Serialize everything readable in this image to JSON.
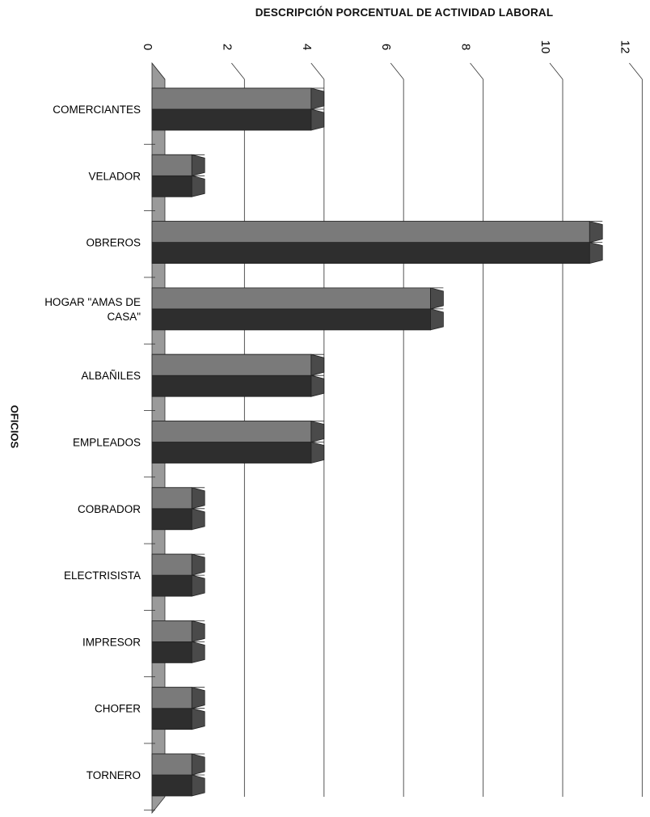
{
  "chart_data": {
    "type": "bar",
    "title": "DESCRIPCIÓN PORCENTUAL DE ACTIVIDAD LABORAL",
    "xlabel": "",
    "ylabel": "OFICIOS",
    "orientation": "horizontal",
    "categories": [
      "COMERCIANTES",
      "VELADOR",
      "OBREROS",
      "HOGAR \"AMAS DE CASA\"",
      "ALBAÑILES",
      "EMPLEADOS",
      "COBRADOR",
      "ELECTRISISTA",
      "IMPRESOR",
      "CHOFER",
      "TORNERO"
    ],
    "category_lines": [
      [
        "COMERCIANTES"
      ],
      [
        "VELADOR"
      ],
      [
        "OBREROS"
      ],
      [
        "HOGAR \"AMAS DE",
        "CASA\""
      ],
      [
        "ALBAÑILES"
      ],
      [
        "EMPLEADOS"
      ],
      [
        "COBRADOR"
      ],
      [
        "ELECTRISISTA"
      ],
      [
        "IMPRESOR"
      ],
      [
        "CHOFER"
      ],
      [
        "TORNERO"
      ]
    ],
    "series": [
      {
        "values": [
          4,
          1,
          11,
          7,
          4,
          4,
          1,
          1,
          1,
          1,
          1
        ]
      },
      {
        "values": [
          4,
          1,
          11,
          7,
          4,
          4,
          1,
          1,
          1,
          1,
          1
        ]
      }
    ],
    "xlim": [
      0,
      12
    ],
    "xticks": [
      "0",
      "2",
      "4",
      "6",
      "8",
      "10",
      "12"
    ],
    "grid": true,
    "legend": "none",
    "colors": {
      "series1": "#7a7a7a",
      "series2": "#2e2e2e",
      "floor": "#9a9a9a",
      "grid": "#555555"
    }
  }
}
